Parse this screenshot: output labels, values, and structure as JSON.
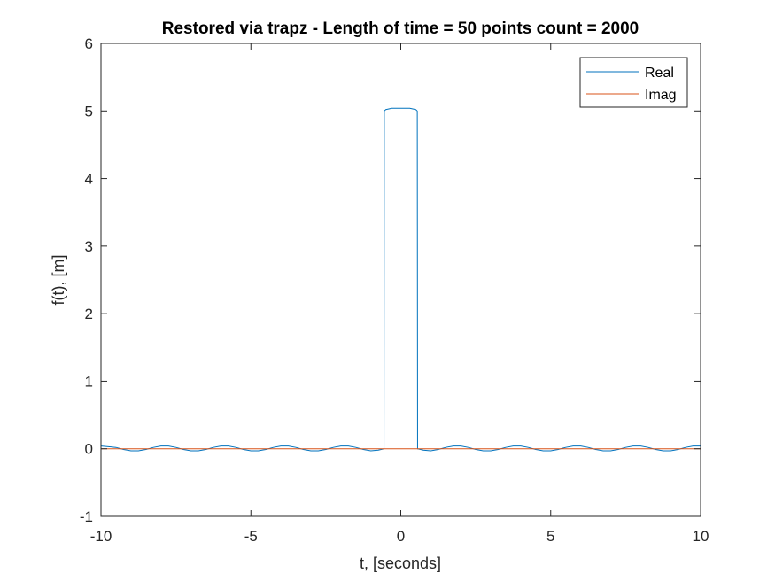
{
  "chart_data": {
    "type": "line",
    "title": "Restored via trapz - Length of time = 50 points count = 2000",
    "xlabel": "t, [seconds]",
    "ylabel": "f(t), [m]",
    "xlim": [
      -10,
      10
    ],
    "ylim": [
      -1,
      6
    ],
    "xticks": [
      -10,
      -5,
      0,
      5,
      10
    ],
    "yticks": [
      -1,
      0,
      1,
      2,
      3,
      4,
      5,
      6
    ],
    "grid": false,
    "legend": {
      "placement": "top-right",
      "entries": [
        "Real",
        "Imag"
      ]
    },
    "series": [
      {
        "name": "Real",
        "color": "#0072BD",
        "x": [
          -10,
          -9.5,
          -9.25,
          -9,
          -8.75,
          -8.5,
          -8.25,
          -8,
          -7.75,
          -7.5,
          -7.25,
          -7,
          -6.75,
          -6.5,
          -6.25,
          -6,
          -5.75,
          -5.5,
          -5.25,
          -5,
          -4.75,
          -4.5,
          -4.25,
          -4,
          -3.75,
          -3.5,
          -3.25,
          -3,
          -2.75,
          -2.5,
          -2.25,
          -2,
          -1.75,
          -1.5,
          -1.25,
          -1,
          -0.75,
          -0.56,
          -0.55,
          -0.5,
          -0.4,
          -0.3,
          -0.2,
          -0.1,
          0,
          0.1,
          0.2,
          0.3,
          0.4,
          0.5,
          0.55,
          0.56,
          0.75,
          1,
          1.25,
          1.5,
          1.75,
          2,
          2.25,
          2.5,
          2.75,
          3,
          3.25,
          3.5,
          3.75,
          4,
          4.25,
          4.5,
          4.75,
          5,
          5.25,
          5.5,
          5.75,
          6,
          6.25,
          6.5,
          6.75,
          7,
          7.25,
          7.5,
          7.75,
          8,
          8.25,
          8.5,
          8.75,
          9,
          9.25,
          9.5,
          9.75,
          10
        ],
        "y": [
          0.04,
          0.02,
          -0.01,
          -0.03,
          -0.03,
          -0.01,
          0.02,
          0.04,
          0.04,
          0.02,
          -0.01,
          -0.03,
          -0.03,
          -0.01,
          0.02,
          0.04,
          0.04,
          0.02,
          -0.01,
          -0.03,
          -0.03,
          -0.01,
          0.02,
          0.04,
          0.04,
          0.02,
          -0.01,
          -0.03,
          -0.03,
          -0.01,
          0.02,
          0.04,
          0.04,
          0.02,
          -0.01,
          -0.03,
          -0.02,
          0.0,
          5.0,
          5.02,
          5.03,
          5.04,
          5.04,
          5.04,
          5.04,
          5.04,
          5.04,
          5.04,
          5.03,
          5.02,
          5.0,
          0.0,
          -0.02,
          -0.03,
          -0.01,
          0.02,
          0.04,
          0.04,
          0.02,
          -0.01,
          -0.03,
          -0.03,
          -0.01,
          0.02,
          0.04,
          0.04,
          0.02,
          -0.01,
          -0.03,
          -0.03,
          -0.01,
          0.02,
          0.04,
          0.04,
          0.02,
          -0.01,
          -0.03,
          -0.03,
          -0.01,
          0.02,
          0.04,
          0.04,
          0.02,
          -0.01,
          -0.03,
          -0.03,
          -0.01,
          0.02,
          0.04,
          0.04
        ]
      },
      {
        "name": "Imag",
        "color": "#D95319",
        "x": [
          -10,
          10
        ],
        "y": [
          0,
          0
        ]
      }
    ]
  }
}
